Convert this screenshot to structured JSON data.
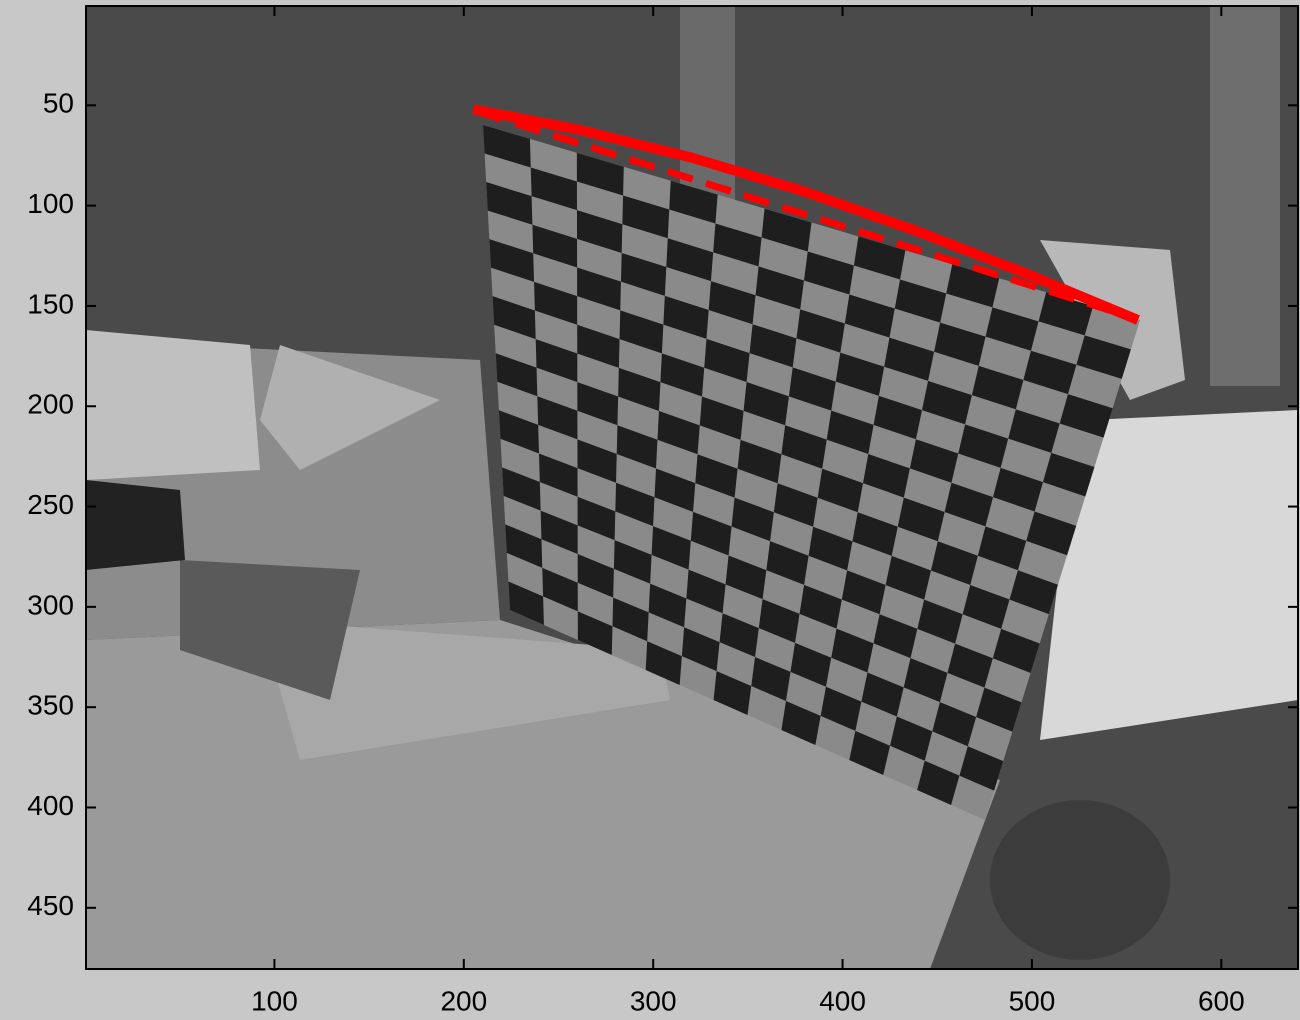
{
  "chart_data": {
    "type": "image",
    "xlim": [
      0.5,
      640.5
    ],
    "ylim": [
      0.5,
      480.5
    ],
    "y_reversed": true,
    "xticks": [
      100,
      200,
      300,
      400,
      500,
      600
    ],
    "yticks": [
      50,
      100,
      150,
      200,
      250,
      300,
      350,
      400,
      450
    ],
    "series": [
      {
        "color": "#ff0000",
        "style": "solid",
        "x": [
          205,
          260,
          320,
          380,
          440,
          500,
          556
        ],
        "y": [
          52,
          62,
          76,
          93,
          113,
          135,
          157
        ]
      },
      {
        "color": "#ff0000",
        "style": "dashed",
        "x": [
          207,
          554
        ],
        "y": [
          53,
          156
        ]
      }
    ]
  }
}
